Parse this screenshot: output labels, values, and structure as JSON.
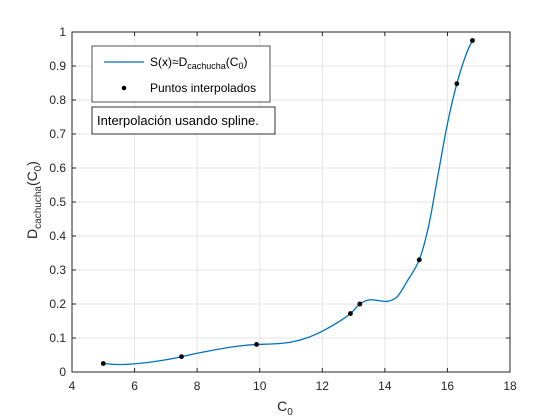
{
  "chart_data": {
    "type": "line",
    "xlabel": {
      "main": "C",
      "sub": "0"
    },
    "ylabel": {
      "main": "D",
      "sub1": "cachucha",
      "mid": "(C",
      "sub2": "0",
      "end": ")"
    },
    "xlim": [
      4,
      18
    ],
    "ylim": [
      0,
      1
    ],
    "xticks": [
      "4",
      "6",
      "8",
      "10",
      "12",
      "14",
      "16",
      "18"
    ],
    "yticks": [
      "0",
      "0.1",
      "0.2",
      "0.3",
      "0.4",
      "0.5",
      "0.6",
      "0.7",
      "0.8",
      "0.9",
      "1"
    ],
    "grid": true,
    "legend_placement": "top-left",
    "series": [
      {
        "name_parts": {
          "main": "S(x)≈D",
          "sub1": "cachucha",
          "mid": "(C",
          "sub2": "0",
          "end": ")"
        },
        "kind": "line",
        "color": "#0072bd",
        "x": [
          5.0,
          5.5,
          6.0,
          6.5,
          7.0,
          7.5,
          8.0,
          8.5,
          9.0,
          9.5,
          9.9,
          10.5,
          11.0,
          11.5,
          12.0,
          12.5,
          12.9,
          13.2,
          13.5,
          13.8,
          14.1,
          14.4,
          14.7,
          15.1,
          15.4,
          15.7,
          16.0,
          16.3,
          16.6,
          16.8
        ],
        "y": [
          0.025,
          0.022,
          0.024,
          0.029,
          0.036,
          0.045,
          0.055,
          0.064,
          0.072,
          0.078,
          0.081,
          0.083,
          0.088,
          0.1,
          0.12,
          0.146,
          0.172,
          0.2,
          0.212,
          0.21,
          0.208,
          0.222,
          0.265,
          0.33,
          0.43,
          0.58,
          0.73,
          0.848,
          0.935,
          0.975
        ]
      },
      {
        "name": "Puntos interpolados",
        "kind": "markers",
        "color": "#000000",
        "x": [
          5.0,
          7.5,
          9.9,
          12.9,
          13.2,
          15.1,
          16.3,
          16.8
        ],
        "y": [
          0.025,
          0.045,
          0.081,
          0.172,
          0.2,
          0.33,
          0.848,
          0.975
        ]
      }
    ],
    "annotation": "Interpolación usando spline."
  },
  "colors": {
    "axis": "#262626",
    "grid": "#e6e6e6",
    "background": "#ffffff"
  }
}
